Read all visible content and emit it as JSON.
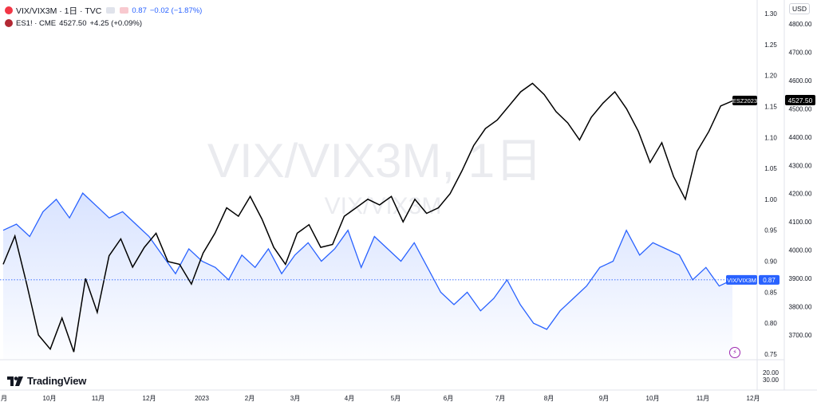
{
  "legend": {
    "main_symbol": "VIX/VIX3M · 1日 · TVC",
    "main_value": "0.87",
    "main_change": "−0.02 (−1.87%)",
    "compare_symbol": "ES1! · CME",
    "compare_value": "4527.50",
    "compare_change": "+4.25 (+0.09%)"
  },
  "currency": "USD",
  "watermark": {
    "title": "VIX/VIX3M, 1日",
    "subtitle": "VIX/VIX3M"
  },
  "brand": "TradingView",
  "colors": {
    "ratio_line": "#2962ff",
    "es_line": "#000000",
    "fill_top": "#cfdcff"
  },
  "chart_data": {
    "type": "line",
    "x_axis_labels": [
      "月",
      "10月",
      "11月",
      "12月",
      "2023",
      "2月",
      "3月",
      "4月",
      "5月",
      "6月",
      "7月",
      "8月",
      "9月",
      "10月",
      "11月",
      "12月"
    ],
    "ratio_axis": {
      "ticks": [
        "1.30",
        "1.25",
        "1.20",
        "1.15",
        "1.10",
        "1.05",
        "1.00",
        "0.95",
        "0.90",
        "0.85",
        "0.80",
        "0.75"
      ],
      "range": [
        0.72,
        1.31
      ]
    },
    "es_axis": {
      "ticks": [
        "4800.00",
        "4700.00",
        "4600.00",
        "4500.00",
        "4400.00",
        "4300.00",
        "4200.00",
        "4100.00",
        "4000.00",
        "3900.00",
        "3800.00",
        "3700.00"
      ],
      "range": [
        3650,
        4830
      ]
    },
    "volume_axis": {
      "ticks": [
        "20.00",
        "30.00"
      ]
    },
    "last_labels": {
      "es_name": "ESZ2023",
      "es_price": "4527.50",
      "ratio_name": "VIX/VIX3M",
      "ratio_price": "0.87"
    },
    "series": [
      {
        "name": "VIX/VIX3M",
        "values": [
          0.95,
          0.96,
          0.94,
          0.98,
          1.0,
          0.97,
          1.01,
          0.99,
          0.97,
          0.98,
          0.96,
          0.94,
          0.91,
          0.88,
          0.92,
          0.9,
          0.89,
          0.87,
          0.91,
          0.89,
          0.92,
          0.88,
          0.91,
          0.93,
          0.9,
          0.92,
          0.95,
          0.89,
          0.94,
          0.92,
          0.9,
          0.93,
          0.89,
          0.85,
          0.83,
          0.85,
          0.82,
          0.84,
          0.87,
          0.83,
          0.8,
          0.79,
          0.82,
          0.84,
          0.86,
          0.89,
          0.9,
          0.95,
          0.91,
          0.93,
          0.92,
          0.91,
          0.87,
          0.89,
          0.86,
          0.87
        ],
        "style": "area"
      },
      {
        "name": "ES1!",
        "values": [
          3950,
          4050,
          3880,
          3700,
          3650,
          3760,
          3640,
          3900,
          3780,
          3980,
          4040,
          3940,
          4010,
          4060,
          3960,
          3950,
          3880,
          3990,
          4060,
          4150,
          4120,
          4190,
          4110,
          4010,
          3950,
          4060,
          4090,
          4010,
          4020,
          4120,
          4150,
          4180,
          4160,
          4190,
          4100,
          4180,
          4130,
          4150,
          4200,
          4280,
          4370,
          4430,
          4460,
          4510,
          4560,
          4590,
          4550,
          4490,
          4450,
          4390,
          4470,
          4520,
          4560,
          4500,
          4420,
          4310,
          4380,
          4260,
          4180,
          4350,
          4420,
          4510,
          4527.5
        ]
      }
    ]
  }
}
